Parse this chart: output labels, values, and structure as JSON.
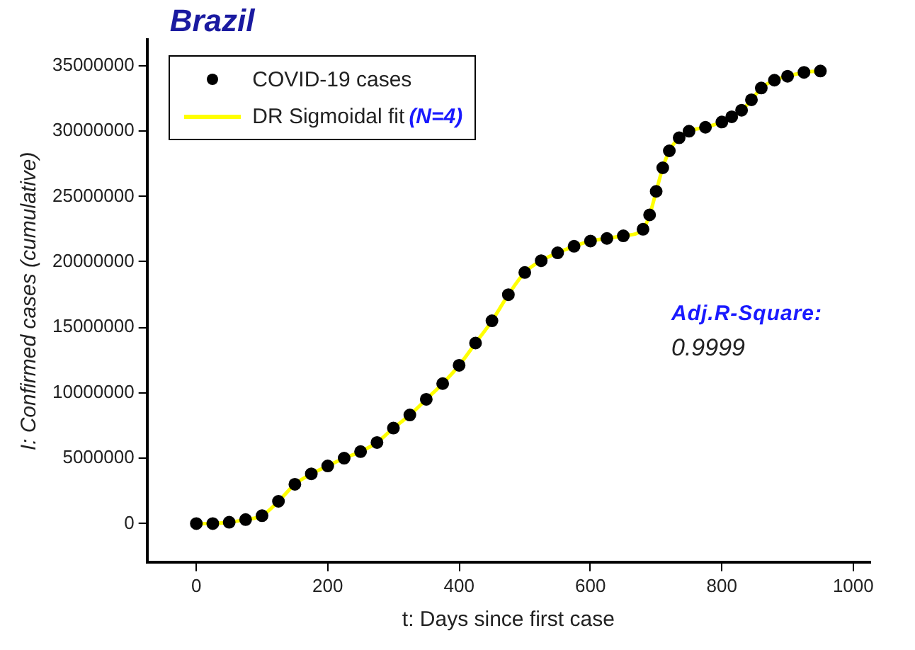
{
  "chart_data": {
    "type": "scatter",
    "title": "Brazil",
    "xlabel": "t: Days since first case",
    "ylabel": "I: Confirmed cases (cumulative)",
    "xlim": [
      -75,
      1025
    ],
    "xticks": [
      0,
      200,
      400,
      600,
      800,
      1000
    ],
    "ylim": [
      -3000000,
      37000000
    ],
    "yticks": [
      0,
      5000000,
      10000000,
      15000000,
      20000000,
      25000000,
      30000000,
      35000000
    ],
    "grid": false,
    "legend": "top left",
    "annotations": [
      "Adj.R-Square:",
      "0.9999"
    ],
    "series": [
      {
        "name": "COVID-19 cases",
        "type": "scatter",
        "marker": "circle",
        "color": "#000000",
        "x": [
          0,
          25,
          50,
          75,
          100,
          125,
          150,
          175,
          200,
          225,
          250,
          275,
          300,
          325,
          350,
          375,
          400,
          425,
          450,
          475,
          500,
          525,
          550,
          575,
          600,
          625,
          650,
          680,
          690,
          700,
          710,
          720,
          735,
          750,
          775,
          800,
          815,
          830,
          845,
          860,
          880,
          900,
          925,
          950
        ],
        "values": [
          0,
          0,
          100000,
          300000,
          600000,
          1700000,
          3000000,
          3800000,
          4400000,
          5000000,
          5500000,
          6200000,
          7300000,
          8300000,
          9500000,
          10700000,
          12100000,
          13800000,
          15500000,
          17500000,
          19200000,
          20100000,
          20700000,
          21200000,
          21600000,
          21800000,
          22000000,
          22500000,
          23600000,
          25400000,
          27200000,
          28500000,
          29500000,
          30000000,
          30300000,
          30700000,
          31100000,
          31600000,
          32400000,
          33300000,
          33900000,
          34200000,
          34500000,
          34600000
        ]
      },
      {
        "name": "DR Sigmoidal fit (N=4)",
        "type": "line",
        "marker": "none",
        "line_style": "solid",
        "color": "#ffff00",
        "x": [
          0,
          25,
          50,
          75,
          100,
          125,
          150,
          175,
          200,
          225,
          250,
          275,
          300,
          325,
          350,
          375,
          400,
          425,
          450,
          475,
          500,
          525,
          550,
          575,
          600,
          625,
          650,
          680,
          690,
          700,
          710,
          720,
          735,
          750,
          775,
          800,
          815,
          830,
          845,
          860,
          880,
          900,
          925,
          950
        ],
        "values": [
          0,
          0,
          100000,
          300000,
          600000,
          1700000,
          3000000,
          3800000,
          4400000,
          5000000,
          5500000,
          6200000,
          7300000,
          8300000,
          9500000,
          10700000,
          12100000,
          13800000,
          15500000,
          17500000,
          19200000,
          20100000,
          20700000,
          21200000,
          21600000,
          21800000,
          22000000,
          22500000,
          23600000,
          25400000,
          27200000,
          28500000,
          29500000,
          30000000,
          30300000,
          30700000,
          31100000,
          31600000,
          32400000,
          33300000,
          33900000,
          34200000,
          34500000,
          34600000
        ]
      }
    ]
  }
}
